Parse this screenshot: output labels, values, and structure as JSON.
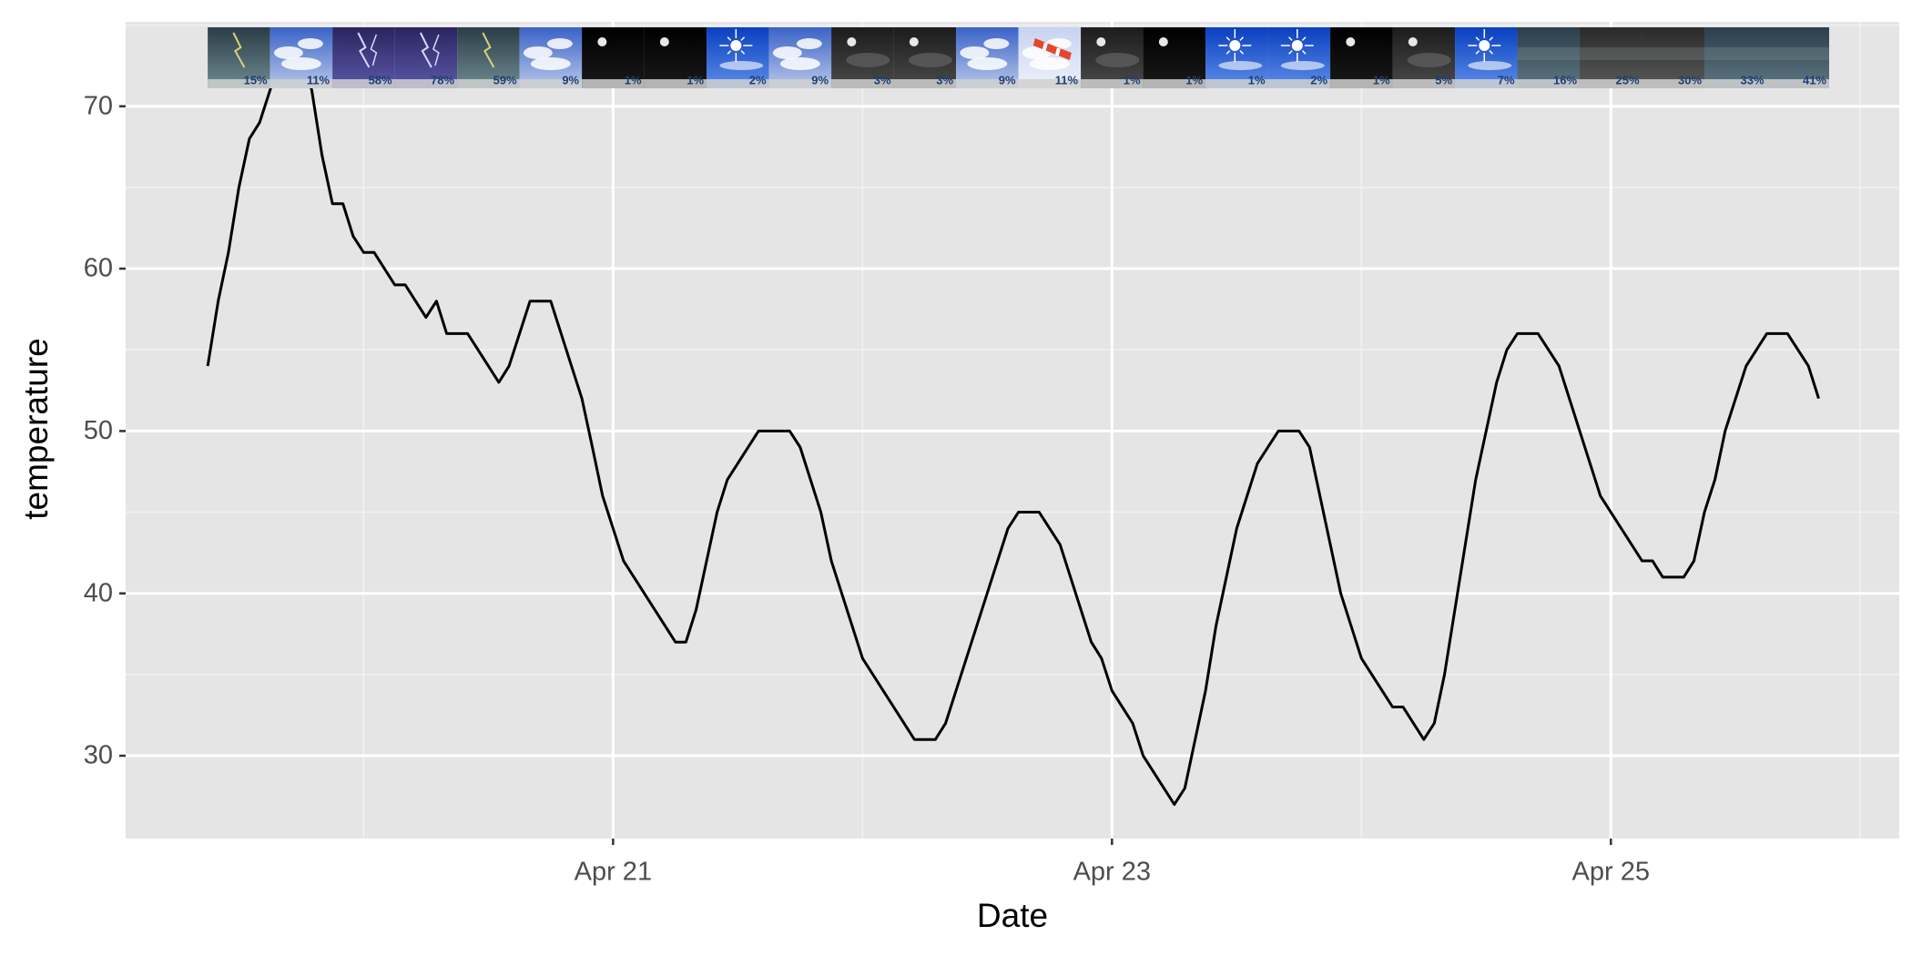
{
  "chart_data": {
    "type": "line",
    "xlabel": "Date",
    "ylabel": "temperature",
    "x": [
      19.375,
      19.417,
      19.458,
      19.5,
      19.542,
      19.583,
      19.625,
      19.667,
      19.75,
      19.792,
      19.833,
      19.875,
      19.917,
      19.958,
      20.0,
      20.042,
      20.125,
      20.167,
      20.25,
      20.292,
      20.333,
      20.417,
      20.542,
      20.583,
      20.667,
      20.75,
      20.875,
      20.917,
      20.958,
      21.042,
      21.25,
      21.292,
      21.333,
      21.417,
      21.458,
      21.583,
      21.708,
      21.75,
      21.833,
      21.875,
      22.0,
      22.208,
      22.292,
      22.333,
      22.583,
      22.625,
      22.708,
      22.792,
      22.917,
      22.958,
      23.0,
      23.083,
      23.125,
      23.25,
      23.292,
      23.375,
      23.417,
      23.5,
      23.583,
      23.667,
      23.75,
      23.792,
      23.917,
      24.0,
      24.125,
      24.167,
      24.25,
      24.292,
      24.333,
      24.458,
      24.542,
      24.583,
      24.625,
      24.708,
      24.792,
      24.958,
      25.125,
      25.167,
      25.208,
      25.292,
      25.333,
      25.375,
      25.417,
      25.458,
      25.542,
      25.625,
      25.708,
      25.792,
      25.833
    ],
    "values": [
      54,
      58,
      61,
      65,
      68,
      69,
      71,
      73,
      73,
      71,
      67,
      64,
      64,
      62,
      61,
      61,
      59,
      59,
      57,
      58,
      56,
      56,
      53,
      54,
      58,
      58,
      52,
      49,
      46,
      42,
      37,
      37,
      39,
      45,
      47,
      50,
      50,
      49,
      45,
      42,
      36,
      31,
      31,
      32,
      44,
      45,
      45,
      43,
      37,
      36,
      34,
      32,
      30,
      27,
      28,
      34,
      38,
      44,
      48,
      50,
      50,
      49,
      40,
      36,
      33,
      33,
      31,
      32,
      35,
      47,
      53,
      55,
      56,
      56,
      54,
      46,
      42,
      42,
      41,
      41,
      42,
      45,
      47,
      50,
      54,
      56,
      56,
      54,
      52
    ],
    "color": "#000000",
    "xlim": [
      19.046,
      26.156
    ],
    "xticks": [
      {
        "value": 21,
        "label": "Apr 21"
      },
      {
        "value": 23,
        "label": "Apr 23"
      },
      {
        "value": 25,
        "label": "Apr 25"
      }
    ],
    "x_minor_ticks": [
      20,
      22,
      24,
      26
    ],
    "ylim": [
      24.9,
      75.2
    ],
    "yticks": [
      30,
      40,
      50,
      60,
      70
    ],
    "y_minor_ticks": [
      35,
      45,
      55,
      65,
      75
    ],
    "grid": true,
    "precip": {
      "x": [
        19.5,
        19.75,
        20.0,
        20.25,
        20.5,
        20.75,
        21.0,
        21.25,
        21.5,
        21.75,
        22.0,
        22.25,
        22.5,
        22.75,
        23.0,
        23.25,
        23.5,
        23.75,
        24.0,
        24.25,
        24.5,
        24.75,
        25.0,
        25.25,
        25.5,
        25.75
      ],
      "values": [
        15,
        11,
        58,
        78,
        59,
        9,
        1,
        1,
        2,
        9,
        3,
        3,
        9,
        11,
        1,
        1,
        1,
        2,
        1,
        5,
        7,
        16,
        25,
        30,
        33,
        41
      ],
      "value_labels": [
        "15%",
        "11%",
        "58%",
        "78%",
        "59%",
        "9%",
        "1%",
        "1%",
        "2%",
        "9%",
        "3%",
        "3%",
        "9%",
        "11%",
        "1%",
        "1%",
        "1%",
        "2%",
        "1%",
        "5%",
        "7%",
        "16%",
        "25%",
        "30%",
        "33%",
        "41%"
      ],
      "icons": [
        "storm",
        "cloudy",
        "lightning",
        "lightning",
        "storm",
        "cloudy",
        "night",
        "night",
        "sunny",
        "cloudy",
        "night-cloudy",
        "night-cloudy",
        "cloudy",
        "windy",
        "night-cloudy",
        "night",
        "sunny",
        "sunny",
        "night",
        "night-cloudy",
        "sunny",
        "overcast",
        "overcast-dark",
        "overcast-dark",
        "overcast",
        "overcast"
      ]
    }
  }
}
